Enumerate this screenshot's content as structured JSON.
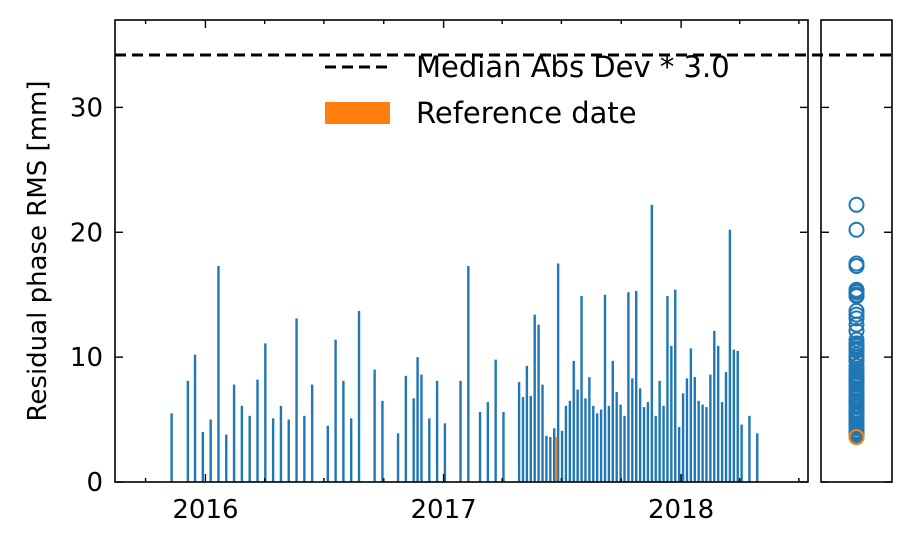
{
  "chart_data": [
    {
      "type": "bar",
      "ylabel": "Residual phase RMS [mm]",
      "xlabel": "",
      "x_tick_labels": [
        "2016",
        "2017",
        "2018"
      ],
      "x_tick_dates": [
        "2016-01-01",
        "2017-01-01",
        "2018-01-01"
      ],
      "y_ticks": [
        0,
        10,
        20,
        30
      ],
      "ylim": [
        0,
        37
      ],
      "xlim": [
        "2015-08-15",
        "2018-07-15"
      ],
      "grid": false,
      "legend_position": "top-right",
      "threshold": {
        "name": "Median Abs Dev * 3.0",
        "value": 34.2,
        "style": "dashed",
        "color": "#000000"
      },
      "reference": {
        "name": "Reference date",
        "date": "2017-06-23",
        "value": 3.6,
        "color": "#ff7f0e"
      },
      "bar_color": "#1f77b4",
      "dates": [
        "2015-11-10",
        "2015-12-05",
        "2015-12-16",
        "2015-12-28",
        "2016-01-09",
        "2016-01-21",
        "2016-02-02",
        "2016-02-14",
        "2016-02-26",
        "2016-03-09",
        "2016-03-21",
        "2016-04-02",
        "2016-04-14",
        "2016-04-26",
        "2016-05-08",
        "2016-05-20",
        "2016-06-01",
        "2016-06-13",
        "2016-07-07",
        "2016-07-19",
        "2016-07-31",
        "2016-08-12",
        "2016-08-24",
        "2016-09-17",
        "2016-09-29",
        "2016-10-23",
        "2016-11-04",
        "2016-11-16",
        "2016-11-22",
        "2016-11-28",
        "2016-12-10",
        "2016-12-22",
        "2017-01-03",
        "2017-01-27",
        "2017-02-08",
        "2017-02-26",
        "2017-03-10",
        "2017-03-22",
        "2017-04-03",
        "2017-04-27",
        "2017-05-03",
        "2017-05-09",
        "2017-05-15",
        "2017-05-21",
        "2017-05-27",
        "2017-06-02",
        "2017-06-08",
        "2017-06-14",
        "2017-06-20",
        "2017-06-26",
        "2017-07-02",
        "2017-07-08",
        "2017-07-14",
        "2017-07-20",
        "2017-07-26",
        "2017-08-01",
        "2017-08-07",
        "2017-08-13",
        "2017-08-19",
        "2017-08-25",
        "2017-08-31",
        "2017-09-06",
        "2017-09-12",
        "2017-09-18",
        "2017-09-24",
        "2017-09-30",
        "2017-10-06",
        "2017-10-12",
        "2017-10-18",
        "2017-10-24",
        "2017-10-30",
        "2017-11-05",
        "2017-11-11",
        "2017-11-17",
        "2017-11-23",
        "2017-11-29",
        "2017-12-05",
        "2017-12-11",
        "2017-12-17",
        "2017-12-23",
        "2017-12-29",
        "2018-01-04",
        "2018-01-10",
        "2018-01-16",
        "2018-01-22",
        "2018-01-28",
        "2018-02-03",
        "2018-02-09",
        "2018-02-15",
        "2018-02-21",
        "2018-02-27",
        "2018-03-05",
        "2018-03-11",
        "2018-03-17",
        "2018-03-23",
        "2018-03-29",
        "2018-04-04",
        "2018-04-16",
        "2018-04-28"
      ],
      "values": [
        5.5,
        8.1,
        10.2,
        4.0,
        5.0,
        17.3,
        3.8,
        7.8,
        6.1,
        5.3,
        8.2,
        11.1,
        5.1,
        6.1,
        5.0,
        13.1,
        5.3,
        7.8,
        4.5,
        11.4,
        8.1,
        5.1,
        13.7,
        9.0,
        6.5,
        3.9,
        8.5,
        6.7,
        10.0,
        8.6,
        5.1,
        8.1,
        4.7,
        8.1,
        17.3,
        5.6,
        6.4,
        9.8,
        5.6,
        8.0,
        6.8,
        9.3,
        6.9,
        13.4,
        12.6,
        7.8,
        3.7,
        3.6,
        4.3,
        17.5,
        4.1,
        6.1,
        6.5,
        9.7,
        7.4,
        14.9,
        6.7,
        8.4,
        6.1,
        5.5,
        5.8,
        15.0,
        6.1,
        9.7,
        7.2,
        6.2,
        5.3,
        15.2,
        8.3,
        15.3,
        7.5,
        6.0,
        6.4,
        22.2,
        5.3,
        8.1,
        6.1,
        14.9,
        10.9,
        15.4,
        4.4,
        7.1,
        8.3,
        10.7,
        8.4,
        6.5,
        6.2,
        6.0,
        8.6,
        12.1,
        10.9,
        6.4,
        8.8,
        20.2,
        10.6,
        10.5,
        4.6,
        5.3,
        3.9
      ]
    },
    {
      "type": "scatter",
      "xlabel": "",
      "ylabel": "",
      "ylim": [
        0,
        37
      ],
      "description_series": "distribution of residual phase RMS values",
      "threshold_value": 34.2,
      "marker": "open-circle",
      "color": "#1f77b4",
      "reference_color": "#ff7f0e",
      "reference_value": 3.6
    }
  ]
}
